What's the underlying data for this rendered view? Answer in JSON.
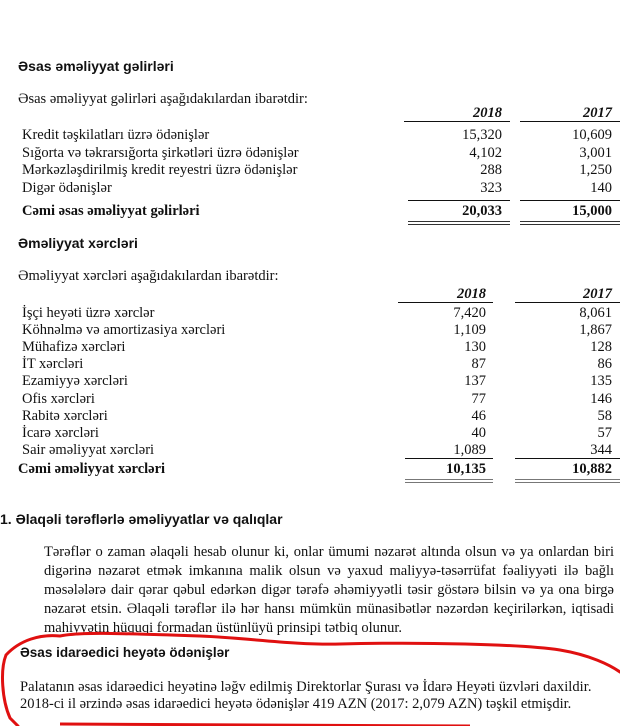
{
  "income": {
    "heading": "Əsas əməliyyat gəlirləri",
    "intro": "Əsas əməliyyat gəlirləri aşağıdakılardan ibarətdir:",
    "columns": [
      "2018",
      "2017"
    ],
    "rows": [
      {
        "label": "Kredit təşkilatları üzrə ödənişlər",
        "v2018": "15,320",
        "v2017": "10,609"
      },
      {
        "label": "Sığorta və təkrarsığorta şirkətləri üzrə ödənişlər",
        "v2018": "4,102",
        "v2017": "3,001"
      },
      {
        "label": "Mərkəzləşdirilmiş kredit reyestri üzrə ödənişlər",
        "v2018": "288",
        "v2017": "1,250"
      },
      {
        "label": "Digər ödənişlər",
        "v2018": "323",
        "v2017": "140"
      }
    ],
    "total": {
      "label": "Cəmi əsas əməliyyat gəlirləri",
      "v2018": "20,033",
      "v2017": "15,000"
    }
  },
  "expenses": {
    "heading": "Əməliyyat xərcləri",
    "intro": "Əməliyyat xərcləri aşağıdakılardan ibarətdir:",
    "columns": [
      "2018",
      "2017"
    ],
    "rows": [
      {
        "label": "İşçi heyəti üzrə xərclər",
        "v2018": "7,420",
        "v2017": "8,061"
      },
      {
        "label": "Köhnəlmə və amortizasiya xərcləri",
        "v2018": "1,109",
        "v2017": "1,867"
      },
      {
        "label": "Mühafizə xərcləri",
        "v2018": "130",
        "v2017": "128"
      },
      {
        "label": "İT xərcləri",
        "v2018": "87",
        "v2017": "86"
      },
      {
        "label": "Ezamiyyə xərcləri",
        "v2018": "137",
        "v2017": "135"
      },
      {
        "label": "Ofis xərcləri",
        "v2018": "77",
        "v2017": "146"
      },
      {
        "label": "Rabitə xərcləri",
        "v2018": "46",
        "v2017": "58"
      },
      {
        "label": "İcarə xərcləri",
        "v2018": "40",
        "v2017": "57"
      },
      {
        "label": "Sair əməliyyat xərcləri",
        "v2018": "1,089",
        "v2017": "344"
      }
    ],
    "total": {
      "label": "Cəmi əməliyyat xərcləri",
      "v2018": "10,135",
      "v2017": "10,882"
    }
  },
  "related": {
    "heading": "1.  Əlaqəli tərəflərlə əməliyyatlar və qalıqlar",
    "paragraph": "Tərəflər o zaman əlaqəli hesab olunur ki, onlar ümumi nəzarət altında olsun və ya onlardan biri digərinə nəzarət etmək imkanına malik olsun və yaxud maliyyə-təsərrüfat fəaliyyəti ilə bağlı məsələlərə dair qərar qəbul edərkən digər tərəfə əhəmiyyətli təsir göstərə bilsin və ya ona birgə nəzarət etsin. Əlaqəli tərəflər ilə hər hansı mümkün münasibətlər nəzərdən keçirilərkən, iqtisadi mahiyyətin hüquqi formadan üstünlüyü prinsipi tətbiq olunur.",
    "sub_heading": "Əsas idarəedici heyətə ödənişlər",
    "sub_line1": "Palatanın əsas idarəedici heyətinə ləğv edilmiş Direktorlar Şurası və İdarə Heyəti üzvləri daxildir.",
    "sub_line2": "2018-ci il ərzində əsas idarəedici heyətə ödənişlər 419 AZN (2017: 2,079 AZN) təşkil etmişdir."
  },
  "annotation_color": "#e01010"
}
